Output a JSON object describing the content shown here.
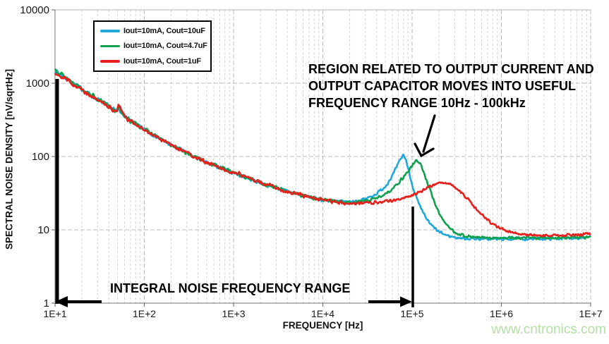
{
  "legend": {
    "items": [
      {
        "label": "Iout=10mA, Cout=10uF",
        "color": "#22A7DB"
      },
      {
        "label": "Iout=10mA, Cout=4.7uF",
        "color": "#0FA14E"
      },
      {
        "label": "Iout=10mA, Cout=1uF",
        "color": "#E6201C"
      }
    ]
  },
  "annotations": {
    "region_note": {
      "lines": [
        "REGION RELATED TO OUTPUT CURRENT AND",
        "OUTPUT CAPACITOR MOVES INTO USEFUL",
        "FREQUENCY RANGE 10Hz - 100kHz"
      ]
    },
    "integral_note": "INTEGRAL NOISE FREQUENCY RANGE"
  },
  "watermark": {
    "text": "www.cntronics.com",
    "color": "#B5DFA5"
  },
  "chart_data": {
    "type": "line",
    "title": "",
    "x_axis": {
      "label": "FREQUENCY [Hz]",
      "scale": "log",
      "min": 10,
      "max": 10000000,
      "tick_labels": [
        "1E+1",
        "1E+2",
        "1E+3",
        "1E+4",
        "1E+5",
        "1E+6",
        "1E+7"
      ],
      "tick_values": [
        10,
        100,
        1000,
        10000,
        100000,
        1000000,
        10000000
      ]
    },
    "y_axis": {
      "label": "SPECTRAL NOISE DENSITY [nV/sqrtHz]",
      "scale": "log",
      "min": 1,
      "max": 10000,
      "tick_labels": [
        "10000",
        "1000",
        "100",
        "10",
        "1"
      ],
      "tick_values": [
        10000,
        1000,
        100,
        10,
        1
      ]
    },
    "grid": {
      "vertical_minor": true,
      "horizontal_major": true,
      "style": "dashed"
    },
    "legend_position": "top-left",
    "series": [
      {
        "name": "Iout=10mA, Cout=10uF",
        "color": "#22A7DB",
        "seed": 7,
        "peak": {
          "freq_hz": 80000,
          "value": 106
        },
        "points": [
          [
            1.0,
            1480
          ],
          [
            1.1,
            1220
          ],
          [
            1.2,
            1000
          ],
          [
            1.3,
            830
          ],
          [
            1.4,
            690
          ],
          [
            1.5,
            575
          ],
          [
            1.6,
            480
          ],
          [
            1.7,
            405
          ],
          [
            1.75,
            390
          ],
          [
            1.8,
            330
          ],
          [
            1.9,
            278
          ],
          [
            2.0,
            233
          ],
          [
            2.1,
            198
          ],
          [
            2.2,
            168
          ],
          [
            2.3,
            143
          ],
          [
            2.4,
            124
          ],
          [
            2.5,
            107
          ],
          [
            2.6,
            94
          ],
          [
            2.7,
            83
          ],
          [
            2.8,
            74
          ],
          [
            2.9,
            66.5
          ],
          [
            3.0,
            60
          ],
          [
            3.1,
            54
          ],
          [
            3.2,
            48.5
          ],
          [
            3.3,
            44
          ],
          [
            3.4,
            40
          ],
          [
            3.5,
            36.5
          ],
          [
            3.6,
            33.5
          ],
          [
            3.7,
            31
          ],
          [
            3.8,
            28.8
          ],
          [
            3.9,
            27
          ],
          [
            4.0,
            25.6
          ],
          [
            4.1,
            24.7
          ],
          [
            4.2,
            24.2
          ],
          [
            4.3,
            24.2
          ],
          [
            4.4,
            25
          ],
          [
            4.5,
            27
          ],
          [
            4.6,
            31
          ],
          [
            4.7,
            39
          ],
          [
            4.78,
            55
          ],
          [
            4.85,
            82
          ],
          [
            4.9,
            106
          ],
          [
            4.93,
            92
          ],
          [
            4.97,
            58
          ],
          [
            5.0,
            42
          ],
          [
            5.05,
            27
          ],
          [
            5.1,
            19
          ],
          [
            5.15,
            15
          ],
          [
            5.2,
            12
          ],
          [
            5.3,
            9.3
          ],
          [
            5.4,
            8.3
          ],
          [
            5.5,
            7.8
          ],
          [
            5.6,
            7.6
          ],
          [
            5.8,
            7.5
          ],
          [
            6.0,
            7.5
          ],
          [
            6.3,
            7.5
          ],
          [
            6.6,
            7.6
          ],
          [
            7.0,
            7.9
          ]
        ],
        "spikes": [
          {
            "logf": 1.72,
            "amp": 0.05,
            "sigma": 0.015
          }
        ]
      },
      {
        "name": "Iout=10mA, Cout=4.7uF",
        "color": "#0FA14E",
        "seed": 13,
        "peak": {
          "freq_hz": 112000,
          "value": 89
        },
        "points": [
          [
            1.0,
            1560
          ],
          [
            1.1,
            1260
          ],
          [
            1.2,
            1030
          ],
          [
            1.3,
            850
          ],
          [
            1.4,
            700
          ],
          [
            1.5,
            582
          ],
          [
            1.6,
            485
          ],
          [
            1.7,
            408
          ],
          [
            1.75,
            395
          ],
          [
            1.8,
            332
          ],
          [
            1.9,
            280
          ],
          [
            2.0,
            235
          ],
          [
            2.1,
            199
          ],
          [
            2.2,
            169
          ],
          [
            2.3,
            144
          ],
          [
            2.4,
            124.5
          ],
          [
            2.5,
            107.5
          ],
          [
            2.6,
            94.5
          ],
          [
            2.7,
            83.5
          ],
          [
            2.8,
            74.5
          ],
          [
            2.9,
            67
          ],
          [
            3.0,
            60.5
          ],
          [
            3.1,
            54.3
          ],
          [
            3.2,
            48.8
          ],
          [
            3.3,
            44.2
          ],
          [
            3.4,
            40.2
          ],
          [
            3.5,
            36.6
          ],
          [
            3.6,
            33.6
          ],
          [
            3.7,
            31.2
          ],
          [
            3.8,
            29
          ],
          [
            3.9,
            27.2
          ],
          [
            4.0,
            25.8
          ],
          [
            4.1,
            24.7
          ],
          [
            4.2,
            24
          ],
          [
            4.3,
            23.7
          ],
          [
            4.4,
            24
          ],
          [
            4.5,
            25
          ],
          [
            4.6,
            27
          ],
          [
            4.7,
            31
          ],
          [
            4.8,
            38
          ],
          [
            4.9,
            52
          ],
          [
            5.0,
            74
          ],
          [
            5.05,
            89
          ],
          [
            5.09,
            82
          ],
          [
            5.13,
            60
          ],
          [
            5.17,
            44
          ],
          [
            5.22,
            30
          ],
          [
            5.3,
            17
          ],
          [
            5.4,
            11
          ],
          [
            5.5,
            9
          ],
          [
            5.6,
            8.2
          ],
          [
            5.7,
            7.9
          ],
          [
            5.9,
            7.7
          ],
          [
            6.2,
            7.7
          ],
          [
            6.6,
            7.8
          ],
          [
            7.0,
            7.9
          ]
        ],
        "spikes": [
          {
            "logf": 1.72,
            "amp": 0.055,
            "sigma": 0.015
          }
        ]
      },
      {
        "name": "Iout=10mA, Cout=1uF",
        "color": "#E6201C",
        "seed": 29,
        "peak": {
          "freq_hz": 220000,
          "value": 44
        },
        "points": [
          [
            1.0,
            1400
          ],
          [
            1.1,
            1180
          ],
          [
            1.2,
            980
          ],
          [
            1.3,
            815
          ],
          [
            1.4,
            680
          ],
          [
            1.5,
            568
          ],
          [
            1.6,
            474
          ],
          [
            1.7,
            402
          ],
          [
            1.75,
            392
          ],
          [
            1.8,
            326
          ],
          [
            1.9,
            276
          ],
          [
            2.0,
            232
          ],
          [
            2.1,
            197
          ],
          [
            2.2,
            167
          ],
          [
            2.3,
            142.5
          ],
          [
            2.4,
            123.5
          ],
          [
            2.5,
            106.5
          ],
          [
            2.6,
            94
          ],
          [
            2.7,
            83
          ],
          [
            2.8,
            74
          ],
          [
            2.9,
            66.5
          ],
          [
            3.0,
            60
          ],
          [
            3.1,
            54.5
          ],
          [
            3.2,
            49
          ],
          [
            3.3,
            44
          ],
          [
            3.4,
            40
          ],
          [
            3.5,
            36.4
          ],
          [
            3.6,
            33.4
          ],
          [
            3.7,
            31
          ],
          [
            3.8,
            28.8
          ],
          [
            3.9,
            26.9
          ],
          [
            4.0,
            25.4
          ],
          [
            4.1,
            24.3
          ],
          [
            4.2,
            23.6
          ],
          [
            4.3,
            23.2
          ],
          [
            4.4,
            23.1
          ],
          [
            4.5,
            23.2
          ],
          [
            4.6,
            23.6
          ],
          [
            4.7,
            24.3
          ],
          [
            4.8,
            25.4
          ],
          [
            4.9,
            27
          ],
          [
            5.0,
            29.5
          ],
          [
            5.1,
            33.5
          ],
          [
            5.2,
            39.5
          ],
          [
            5.3,
            43.5
          ],
          [
            5.37,
            44
          ],
          [
            5.45,
            41
          ],
          [
            5.55,
            33
          ],
          [
            5.65,
            24
          ],
          [
            5.75,
            17.5
          ],
          [
            5.85,
            13.5
          ],
          [
            5.95,
            11
          ],
          [
            6.05,
            9.7
          ],
          [
            6.15,
            9
          ],
          [
            6.3,
            8.5
          ],
          [
            6.5,
            8.3
          ],
          [
            6.7,
            8.4
          ],
          [
            6.85,
            8.6
          ],
          [
            7.0,
            8.8
          ]
        ],
        "spikes": [
          {
            "logf": 1.72,
            "amp": 0.1,
            "sigma": 0.016
          },
          {
            "logf": 2.48,
            "amp": 0.025,
            "sigma": 0.012
          },
          {
            "logf": 3.07,
            "amp": 0.035,
            "sigma": 0.012
          },
          {
            "logf": 3.42,
            "amp": 0.03,
            "sigma": 0.012
          }
        ]
      }
    ],
    "range_markers": {
      "integral_range_hz": [
        10,
        100000
      ]
    }
  }
}
